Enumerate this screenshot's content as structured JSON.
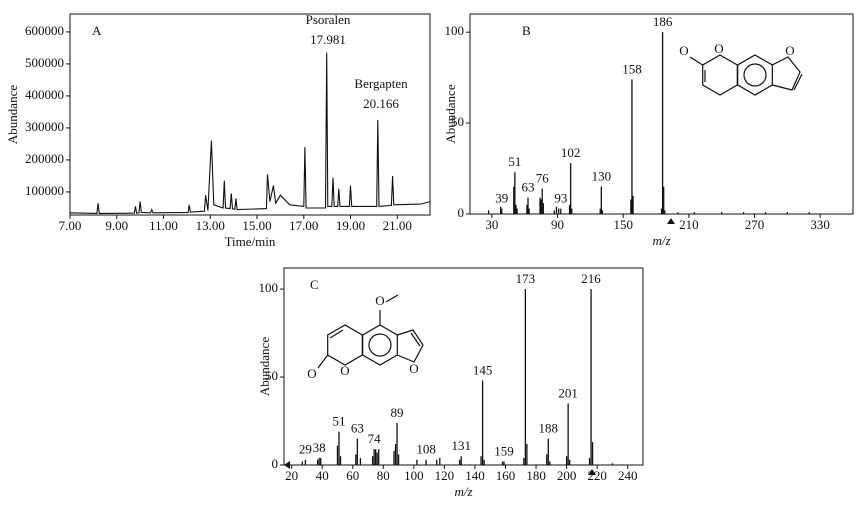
{
  "chart_data": [
    {
      "type": "line",
      "panel_label": "A",
      "x_label": "Time/min",
      "y_label": "Abundance",
      "annotations": [
        "Psoralen",
        "17.981",
        "Bergapten",
        "20.166"
      ],
      "color": "#111111",
      "x": [
        7.0,
        8.15,
        8.2,
        8.25,
        9.75,
        9.8,
        9.85,
        9.95,
        10.0,
        10.05,
        10.45,
        10.5,
        10.55,
        12.05,
        12.1,
        12.15,
        12.75,
        12.8,
        12.9,
        13.05,
        13.15,
        13.55,
        13.6,
        13.65,
        13.85,
        13.9,
        13.95,
        14.05,
        14.1,
        14.15,
        15.4,
        15.45,
        15.55,
        15.7,
        15.8,
        16.0,
        16.4,
        17.0,
        17.05,
        17.1,
        17.93,
        17.98,
        18.03,
        18.2,
        18.25,
        18.3,
        18.45,
        18.5,
        18.55,
        18.95,
        19.0,
        19.05,
        20.12,
        20.166,
        20.22,
        20.75,
        20.8,
        20.85,
        22.0,
        22.4
      ],
      "values": [
        35000,
        33000,
        65000,
        33000,
        34000,
        55000,
        34000,
        35000,
        70000,
        36000,
        35000,
        45000,
        35000,
        36000,
        60000,
        37000,
        40000,
        90000,
        42000,
        260000,
        60000,
        50000,
        135000,
        50000,
        48000,
        95000,
        47000,
        46000,
        80000,
        45000,
        48000,
        155000,
        70000,
        120000,
        65000,
        90000,
        60000,
        55000,
        240000,
        50000,
        50000,
        535000,
        55000,
        55000,
        145000,
        55000,
        55000,
        110000,
        55000,
        55000,
        120000,
        55000,
        55000,
        325000,
        55000,
        58000,
        150000,
        60000,
        62000,
        70000
      ],
      "xlim": [
        7.0,
        22.4
      ],
      "ylim": [
        28000,
        656000
      ],
      "xticks": [
        {
          "value": 7,
          "label": "7.00"
        },
        {
          "value": 9,
          "label": "9.00"
        },
        {
          "value": 11,
          "label": "11.00"
        },
        {
          "value": 13,
          "label": "13.00"
        },
        {
          "value": 15,
          "label": "15.00"
        },
        {
          "value": 17,
          "label": "17.00"
        },
        {
          "value": 19,
          "label": "19.00"
        },
        {
          "value": 21,
          "label": "21.00"
        }
      ],
      "yticks": [
        100000,
        200000,
        300000,
        400000,
        500000,
        600000
      ]
    },
    {
      "type": "bar",
      "panel_label": "B",
      "x_label": "m/z",
      "y_label": "Abundance",
      "color": "#111111",
      "x": [
        39,
        51,
        63,
        76,
        93,
        102,
        130,
        158,
        186
      ],
      "values": [
        3,
        23,
        9,
        14,
        3,
        28,
        15,
        74,
        100
      ],
      "minor_x": [
        27,
        38,
        50,
        52,
        53,
        62,
        64,
        74,
        75,
        77,
        87,
        89,
        91,
        101,
        103,
        129,
        131,
        157,
        159,
        185,
        187,
        188,
        200,
        215,
        240,
        260,
        280,
        300,
        320
      ],
      "minor_values": [
        2,
        4,
        15,
        5,
        3,
        5,
        3,
        9,
        8,
        6,
        2,
        4,
        3,
        5,
        3,
        3,
        2,
        8,
        10,
        3,
        15,
        2,
        1,
        1,
        1,
        1,
        1,
        1,
        1
      ],
      "xlim": [
        10,
        360
      ],
      "ylim": [
        0,
        110
      ],
      "xticks": [
        30,
        90,
        150,
        210,
        270,
        330
      ],
      "yticks": [
        0,
        50,
        100
      ]
    },
    {
      "type": "bar",
      "panel_label": "C",
      "x_label": "m/z",
      "y_label": "Abundance",
      "color": "#111111",
      "x": [
        29,
        38,
        51,
        63,
        74,
        89,
        108,
        131,
        145,
        159,
        173,
        188,
        201,
        216
      ],
      "values": [
        3,
        4,
        19,
        15,
        9,
        24,
        3,
        5,
        48,
        2,
        100,
        15,
        35,
        100
      ],
      "minor_x": [
        27,
        37,
        39,
        50,
        52,
        62,
        65,
        73,
        75,
        76,
        77,
        87,
        88,
        90,
        102,
        115,
        117,
        130,
        144,
        146,
        158,
        172,
        174,
        187,
        189,
        200,
        202,
        215,
        217,
        230
      ],
      "minor_values": [
        2,
        3,
        4,
        11,
        5,
        6,
        4,
        5,
        9,
        7,
        9,
        8,
        12,
        6,
        3,
        3,
        4,
        3,
        5,
        3,
        2,
        4,
        12,
        6,
        2,
        5,
        3,
        4,
        13,
        1
      ],
      "xlim": [
        15,
        250
      ],
      "ylim": [
        0,
        112
      ],
      "xticks": [
        20,
        40,
        60,
        80,
        100,
        120,
        140,
        160,
        180,
        200,
        220,
        240
      ],
      "yticks": [
        0,
        50,
        100
      ]
    }
  ]
}
